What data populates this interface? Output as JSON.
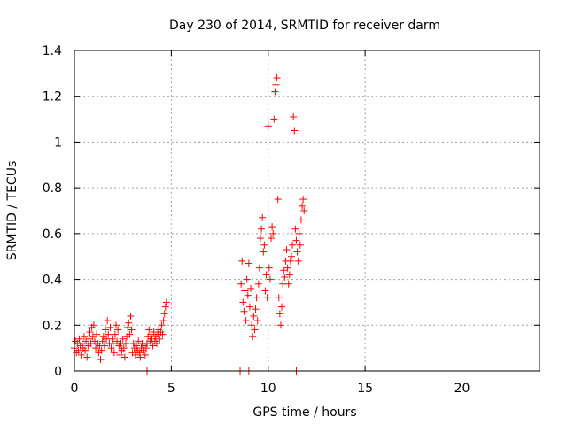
{
  "chart_data": {
    "type": "scatter",
    "title": "Day 230 of 2014, SRMTID for receiver darm",
    "xlabel": "GPS time / hours",
    "ylabel": "SRMTID / TECUs",
    "xlim": [
      0,
      24
    ],
    "ylim": [
      0,
      1.4
    ],
    "xticks": [
      0,
      5,
      10,
      15,
      20
    ],
    "xtick_labels": [
      "0",
      "5",
      "10",
      "15",
      "20"
    ],
    "yticks": [
      0,
      0.2,
      0.4,
      0.6,
      0.8,
      1.0,
      1.2,
      1.4
    ],
    "ytick_labels": [
      "0",
      "0.2",
      "0.4",
      "0.6",
      "0.8",
      "1",
      "1.2",
      "1.4"
    ],
    "grid": true,
    "marker": "+",
    "series": [
      {
        "name": "SRMTID",
        "color": "#ff0000",
        "points": [
          [
            0.0,
            0.1
          ],
          [
            0.05,
            0.13
          ],
          [
            0.1,
            0.08
          ],
          [
            0.15,
            0.12
          ],
          [
            0.2,
            0.09
          ],
          [
            0.25,
            0.14
          ],
          [
            0.3,
            0.11
          ],
          [
            0.35,
            0.07
          ],
          [
            0.4,
            0.12
          ],
          [
            0.45,
            0.1
          ],
          [
            0.5,
            0.15
          ],
          [
            0.55,
            0.09
          ],
          [
            0.6,
            0.13
          ],
          [
            0.65,
            0.06
          ],
          [
            0.7,
            0.11
          ],
          [
            0.75,
            0.14
          ],
          [
            0.8,
            0.17
          ],
          [
            0.85,
            0.12
          ],
          [
            0.9,
            0.19
          ],
          [
            0.95,
            0.15
          ],
          [
            1.0,
            0.2
          ],
          [
            1.05,
            0.13
          ],
          [
            1.1,
            0.1
          ],
          [
            1.15,
            0.16
          ],
          [
            1.2,
            0.12
          ],
          [
            1.25,
            0.08
          ],
          [
            1.3,
            0.11
          ],
          [
            1.35,
            0.05
          ],
          [
            1.4,
            0.09
          ],
          [
            1.45,
            0.13
          ],
          [
            1.5,
            0.15
          ],
          [
            1.55,
            0.11
          ],
          [
            1.6,
            0.18
          ],
          [
            1.65,
            0.14
          ],
          [
            1.7,
            0.22
          ],
          [
            1.75,
            0.16
          ],
          [
            1.8,
            0.12
          ],
          [
            1.85,
            0.19
          ],
          [
            1.9,
            0.1
          ],
          [
            1.95,
            0.14
          ],
          [
            2.0,
            0.12
          ],
          [
            2.05,
            0.08
          ],
          [
            2.1,
            0.16
          ],
          [
            2.15,
            0.2
          ],
          [
            2.2,
            0.13
          ],
          [
            2.25,
            0.18
          ],
          [
            2.3,
            0.11
          ],
          [
            2.35,
            0.07
          ],
          [
            2.4,
            0.12
          ],
          [
            2.45,
            0.09
          ],
          [
            2.5,
            0.14
          ],
          [
            2.55,
            0.1
          ],
          [
            2.6,
            0.06
          ],
          [
            2.65,
            0.12
          ],
          [
            2.7,
            0.15
          ],
          [
            2.75,
            0.19
          ],
          [
            2.8,
            0.21
          ],
          [
            2.85,
            0.16
          ],
          [
            2.9,
            0.24
          ],
          [
            2.95,
            0.18
          ],
          [
            3.0,
            0.08
          ],
          [
            3.05,
            0.12
          ],
          [
            3.1,
            0.1
          ],
          [
            3.15,
            0.07
          ],
          [
            3.2,
            0.11
          ],
          [
            3.25,
            0.09
          ],
          [
            3.3,
            0.13
          ],
          [
            3.35,
            0.08
          ],
          [
            3.4,
            0.06
          ],
          [
            3.45,
            0.1
          ],
          [
            3.5,
            0.12
          ],
          [
            3.55,
            0.09
          ],
          [
            3.6,
            0.11
          ],
          [
            3.65,
            0.07
          ],
          [
            3.7,
            0.1
          ],
          [
            3.75,
            0.12
          ],
          [
            3.8,
            0.15
          ],
          [
            3.85,
            0.18
          ],
          [
            3.9,
            0.13
          ],
          [
            3.95,
            0.16
          ],
          [
            4.0,
            0.14
          ],
          [
            4.05,
            0.11
          ],
          [
            4.1,
            0.17
          ],
          [
            4.15,
            0.13
          ],
          [
            4.2,
            0.15
          ],
          [
            4.25,
            0.12
          ],
          [
            4.3,
            0.16
          ],
          [
            4.35,
            0.18
          ],
          [
            4.4,
            0.14
          ],
          [
            4.45,
            0.17
          ],
          [
            4.5,
            0.2
          ],
          [
            4.55,
            0.16
          ],
          [
            4.6,
            0.22
          ],
          [
            4.65,
            0.25
          ],
          [
            4.7,
            0.28
          ],
          [
            4.75,
            0.3
          ],
          [
            8.6,
            0.38
          ],
          [
            8.65,
            0.48
          ],
          [
            8.7,
            0.3
          ],
          [
            8.75,
            0.26
          ],
          [
            8.8,
            0.35
          ],
          [
            8.85,
            0.22
          ],
          [
            8.9,
            0.4
          ],
          [
            8.95,
            0.33
          ],
          [
            9.0,
            0.47
          ],
          [
            9.05,
            0.28
          ],
          [
            9.1,
            0.36
          ],
          [
            9.15,
            0.2
          ],
          [
            9.2,
            0.15
          ],
          [
            9.25,
            0.24
          ],
          [
            9.3,
            0.18
          ],
          [
            9.35,
            0.27
          ],
          [
            9.4,
            0.32
          ],
          [
            9.45,
            0.22
          ],
          [
            9.5,
            0.38
          ],
          [
            9.55,
            0.45
          ],
          [
            9.6,
            0.58
          ],
          [
            9.65,
            0.62
          ],
          [
            9.7,
            0.67
          ],
          [
            9.75,
            0.52
          ],
          [
            9.8,
            0.55
          ],
          [
            9.85,
            0.35
          ],
          [
            9.9,
            0.42
          ],
          [
            9.95,
            0.32
          ],
          [
            10.0,
            1.07
          ],
          [
            10.05,
            0.45
          ],
          [
            10.1,
            0.4
          ],
          [
            10.15,
            0.58
          ],
          [
            10.2,
            0.63
          ],
          [
            10.25,
            0.6
          ],
          [
            10.3,
            1.1
          ],
          [
            10.35,
            1.22
          ],
          [
            10.4,
            1.25
          ],
          [
            10.45,
            1.28
          ],
          [
            10.5,
            0.75
          ],
          [
            10.55,
            0.32
          ],
          [
            10.6,
            0.25
          ],
          [
            10.65,
            0.2
          ],
          [
            10.7,
            0.28
          ],
          [
            10.75,
            0.38
          ],
          [
            10.8,
            0.44
          ],
          [
            10.85,
            0.41
          ],
          [
            10.9,
            0.48
          ],
          [
            10.95,
            0.53
          ],
          [
            11.0,
            0.45
          ],
          [
            11.05,
            0.38
          ],
          [
            11.1,
            0.42
          ],
          [
            11.15,
            0.48
          ],
          [
            11.2,
            0.5
          ],
          [
            11.25,
            0.55
          ],
          [
            11.3,
            1.11
          ],
          [
            11.35,
            1.05
          ],
          [
            11.4,
            0.62
          ],
          [
            11.45,
            0.57
          ],
          [
            11.5,
            0.52
          ],
          [
            11.55,
            0.48
          ],
          [
            11.6,
            0.6
          ],
          [
            11.65,
            0.55
          ],
          [
            11.7,
            0.66
          ],
          [
            11.75,
            0.72
          ],
          [
            11.8,
            0.75
          ],
          [
            11.85,
            0.7
          ]
        ]
      }
    ],
    "zero_points_x": [
      3.75,
      8.55,
      9.0,
      11.45
    ]
  }
}
